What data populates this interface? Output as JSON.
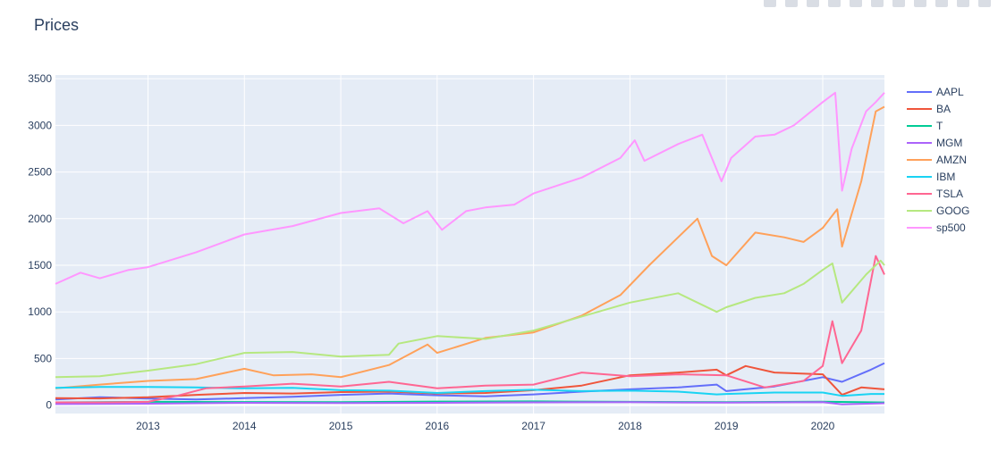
{
  "chart_data": {
    "type": "line",
    "title": "Prices",
    "xlabel": "",
    "ylabel": "",
    "xlim": [
      2012.04,
      2020.64
    ],
    "ylim": [
      -90,
      3540
    ],
    "x_ticks": [
      2013,
      2014,
      2015,
      2016,
      2017,
      2018,
      2019,
      2020
    ],
    "y_ticks": [
      0,
      500,
      1000,
      1500,
      2000,
      2500,
      3000,
      3500
    ],
    "grid": true,
    "legend_position": "right",
    "series": [
      {
        "name": "AAPL",
        "color": "#636efa",
        "x": [
          2012.04,
          2012.5,
          2013.0,
          2013.5,
          2014.0,
          2014.5,
          2015.0,
          2015.5,
          2016.0,
          2016.5,
          2017.0,
          2017.5,
          2018.0,
          2018.5,
          2018.9,
          2019.0,
          2019.5,
          2020.0,
          2020.2,
          2020.5,
          2020.64
        ],
        "y": [
          60,
          85,
          70,
          60,
          75,
          90,
          110,
          125,
          105,
          95,
          115,
          145,
          170,
          190,
          220,
          150,
          200,
          300,
          250,
          380,
          450
        ]
      },
      {
        "name": "BA",
        "color": "#ef553b",
        "x": [
          2012.04,
          2012.5,
          2013.0,
          2013.5,
          2014.0,
          2014.5,
          2015.0,
          2015.5,
          2016.0,
          2016.5,
          2017.0,
          2017.5,
          2018.0,
          2018.5,
          2018.9,
          2019.0,
          2019.2,
          2019.5,
          2020.0,
          2020.2,
          2020.4,
          2020.64
        ],
        "y": [
          75,
          72,
          85,
          110,
          130,
          125,
          140,
          145,
          125,
          130,
          160,
          210,
          320,
          350,
          380,
          320,
          420,
          350,
          330,
          110,
          190,
          170
        ]
      },
      {
        "name": "T",
        "color": "#00cc96",
        "x": [
          2012.04,
          2013.0,
          2014.0,
          2015.0,
          2016.0,
          2017.0,
          2018.0,
          2019.0,
          2020.0,
          2020.64
        ],
        "y": [
          30,
          35,
          34,
          33,
          38,
          40,
          35,
          32,
          37,
          29
        ]
      },
      {
        "name": "MGM",
        "color": "#ab63fa",
        "x": [
          2012.04,
          2013.0,
          2014.0,
          2015.0,
          2016.0,
          2017.0,
          2018.0,
          2019.0,
          2020.0,
          2020.2,
          2020.64
        ],
        "y": [
          12,
          15,
          25,
          22,
          25,
          30,
          32,
          27,
          33,
          8,
          20
        ]
      },
      {
        "name": "AMZN",
        "color": "#ffa15a",
        "x": [
          2012.04,
          2012.5,
          2013.0,
          2013.5,
          2014.0,
          2014.3,
          2014.7,
          2015.0,
          2015.5,
          2015.9,
          2016.0,
          2016.5,
          2017.0,
          2017.5,
          2017.9,
          2018.2,
          2018.5,
          2018.7,
          2018.85,
          2019.0,
          2019.3,
          2019.6,
          2019.8,
          2020.0,
          2020.15,
          2020.2,
          2020.4,
          2020.55,
          2020.64
        ],
        "y": [
          180,
          220,
          260,
          280,
          390,
          320,
          330,
          300,
          430,
          650,
          560,
          720,
          780,
          960,
          1180,
          1500,
          1800,
          2000,
          1600,
          1500,
          1850,
          1800,
          1750,
          1900,
          2100,
          1700,
          2400,
          3150,
          3200
        ]
      },
      {
        "name": "IBM",
        "color": "#19d3f3",
        "x": [
          2012.04,
          2012.5,
          2013.0,
          2013.5,
          2014.0,
          2014.5,
          2015.0,
          2015.5,
          2016.0,
          2016.5,
          2017.0,
          2017.5,
          2018.0,
          2018.5,
          2018.9,
          2019.0,
          2019.5,
          2020.0,
          2020.2,
          2020.5,
          2020.64
        ],
        "y": [
          185,
          195,
          195,
          190,
          180,
          185,
          160,
          155,
          130,
          150,
          165,
          150,
          155,
          145,
          115,
          120,
          135,
          135,
          100,
          120,
          120
        ]
      },
      {
        "name": "TSLA",
        "color": "#ff6692",
        "x": [
          2012.04,
          2012.5,
          2013.0,
          2013.3,
          2013.6,
          2014.0,
          2014.5,
          2015.0,
          2015.5,
          2016.0,
          2016.5,
          2017.0,
          2017.5,
          2018.0,
          2018.5,
          2019.0,
          2019.4,
          2019.8,
          2020.0,
          2020.1,
          2020.2,
          2020.4,
          2020.55,
          2020.64
        ],
        "y": [
          30,
          30,
          35,
          100,
          180,
          200,
          230,
          200,
          250,
          180,
          210,
          220,
          350,
          310,
          330,
          320,
          190,
          260,
          420,
          900,
          450,
          800,
          1600,
          1400
        ]
      },
      {
        "name": "GOOG",
        "color": "#b6e880",
        "x": [
          2012.04,
          2012.5,
          2013.0,
          2013.5,
          2014.0,
          2014.5,
          2015.0,
          2015.5,
          2015.6,
          2016.0,
          2016.5,
          2017.0,
          2017.5,
          2018.0,
          2018.5,
          2018.9,
          2019.0,
          2019.3,
          2019.6,
          2019.8,
          2020.0,
          2020.1,
          2020.2,
          2020.45,
          2020.6,
          2020.64
        ],
        "y": [
          300,
          310,
          370,
          440,
          560,
          570,
          520,
          540,
          660,
          740,
          710,
          800,
          950,
          1100,
          1200,
          1000,
          1050,
          1150,
          1200,
          1300,
          1450,
          1520,
          1100,
          1400,
          1550,
          1500
        ]
      },
      {
        "name": "sp500",
        "color": "#ff97ff",
        "x": [
          2012.04,
          2012.3,
          2012.5,
          2012.8,
          2013.0,
          2013.5,
          2014.0,
          2014.5,
          2015.0,
          2015.4,
          2015.65,
          2015.9,
          2016.05,
          2016.3,
          2016.5,
          2016.8,
          2017.0,
          2017.5,
          2017.9,
          2018.05,
          2018.15,
          2018.5,
          2018.75,
          2018.95,
          2019.05,
          2019.3,
          2019.5,
          2019.7,
          2020.0,
          2020.13,
          2020.2,
          2020.3,
          2020.45,
          2020.55,
          2020.64
        ],
        "y": [
          1300,
          1420,
          1360,
          1450,
          1480,
          1640,
          1830,
          1920,
          2060,
          2110,
          1950,
          2080,
          1880,
          2080,
          2120,
          2150,
          2270,
          2440,
          2650,
          2840,
          2620,
          2800,
          2900,
          2400,
          2650,
          2880,
          2900,
          3000,
          3250,
          3350,
          2300,
          2750,
          3150,
          3250,
          3350
        ]
      }
    ]
  }
}
